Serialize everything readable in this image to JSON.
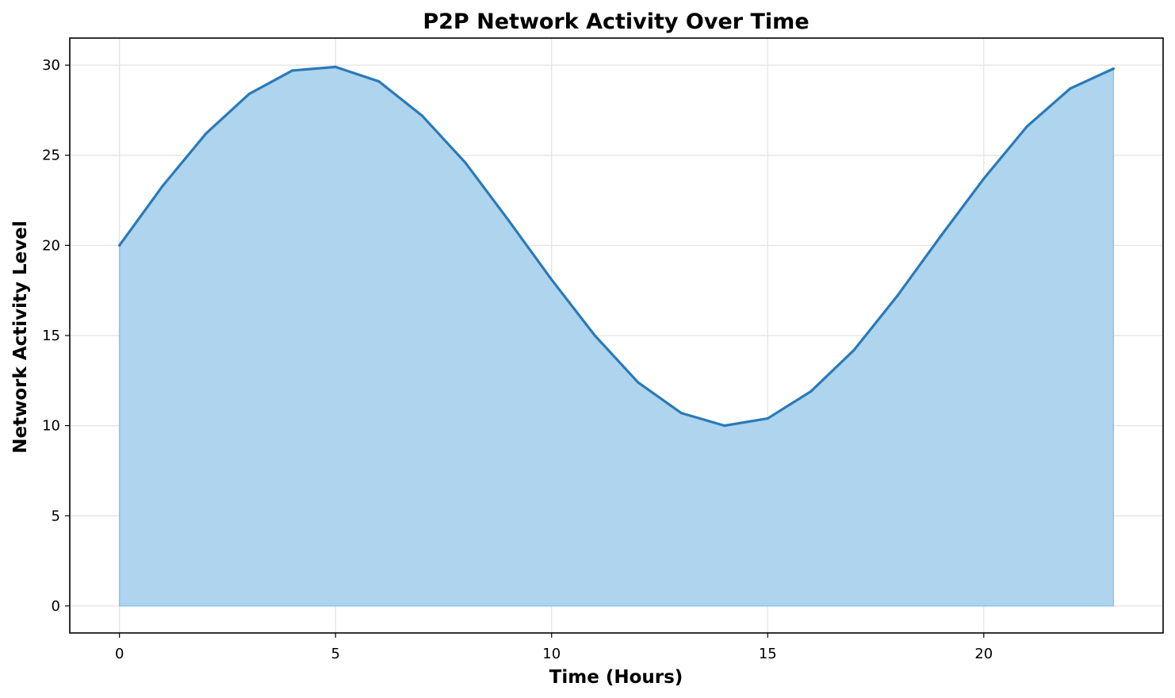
{
  "chart_data": {
    "type": "area",
    "title": "P2P Network Activity Over Time",
    "xlabel": "Time (Hours)",
    "ylabel": "Network Activity Level",
    "xlim": [
      -1.15,
      24.15
    ],
    "ylim": [
      -1.5,
      31.5
    ],
    "xticks": [
      0,
      5,
      10,
      15,
      20
    ],
    "yticks": [
      0,
      5,
      10,
      15,
      20,
      25,
      30
    ],
    "grid": true,
    "x": [
      0,
      1,
      2,
      3,
      4,
      5,
      6,
      7,
      8,
      9,
      10,
      11,
      12,
      13,
      14,
      15,
      16,
      17,
      18,
      19,
      20,
      21,
      22,
      23
    ],
    "series": [
      {
        "values": [
          20.0,
          23.3,
          26.2,
          28.4,
          29.7,
          29.9,
          29.1,
          27.2,
          24.6,
          21.4,
          18.1,
          15.0,
          12.4,
          10.7,
          10.0,
          10.4,
          11.9,
          14.2,
          17.2,
          20.5,
          23.7,
          26.6,
          28.7,
          29.8
        ],
        "line_color": "#2a7ab8",
        "fill_color": "#aed4ee"
      }
    ]
  }
}
